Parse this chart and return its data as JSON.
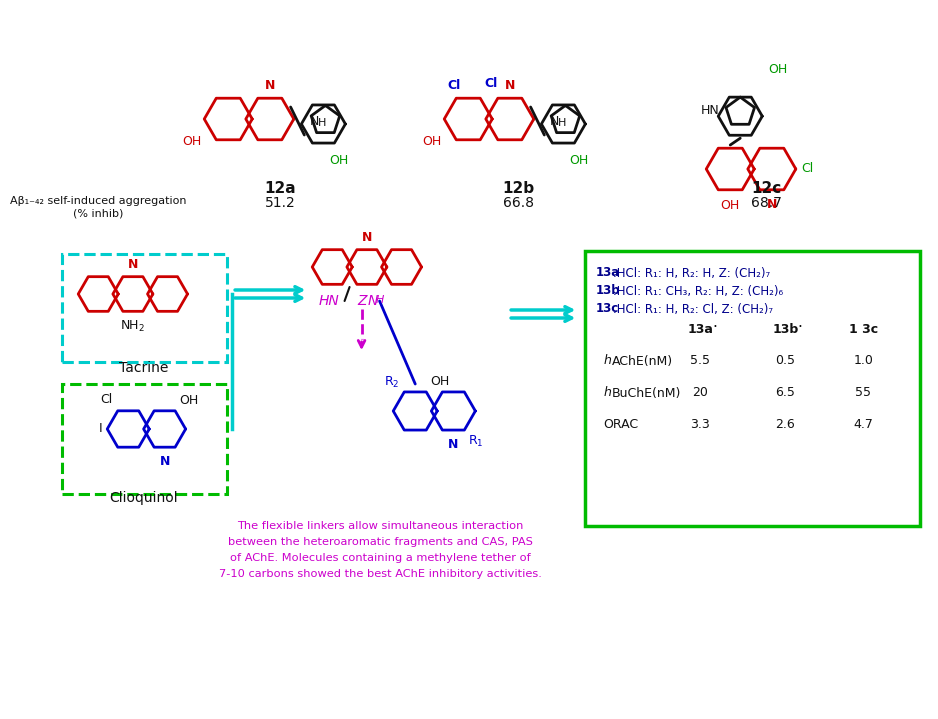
{
  "bg_color": "#ffffff",
  "fig_width": 8.78,
  "fig_height": 6.99,
  "red": "#cc0000",
  "green": "#009900",
  "blue": "#0000cc",
  "dark_blue": "#00008B",
  "cyan_box": "#00cccc",
  "green_box": "#00bb00",
  "magenta": "#cc00cc",
  "black": "#111111",
  "mol12a_label": "12a",
  "mol12b_label": "12b",
  "mol12c_label": "12c",
  "val12a": "51.2",
  "val12b": "66.8",
  "val12c": "68.7",
  "ab_text1": "Aβ₁₋₄₂ self-induced aggregation",
  "ab_text2": "(% inhib)",
  "tacrine_label": "Tacrine",
  "clioquinol_label": "Clioquinol",
  "box13_l1b": "13a",
  "box13_l1r": ".HCl: R₁: H, R₂: H, Z: (CH₂)₇",
  "box13_l2b": "13b",
  "box13_l2r": ".HCl: R₁: CH₃, R₂: H, Z: (CH₂)₆",
  "box13_l3b": "13c",
  "box13_l3r": ".HCl: R₁: H, R₂: Cl, Z: (CH₂)₇",
  "tbl_h1": "13a",
  "tbl_h2": "13b",
  "tbl_h3": "1 3c",
  "tbl_r1": [
    "hAChE(nM)",
    "5.5",
    "0.5",
    "1.0"
  ],
  "tbl_r2": [
    "hBuChE(nM)",
    "20",
    "6.5",
    "55"
  ],
  "tbl_r3": [
    "ORAC",
    "3.3",
    "2.6",
    "4.7"
  ],
  "mag_text": "The flexible linkers allow simultaneous interaction\nbetween the heteroaromatic fragments and CAS, PAS\nof AChE. Molecules containing a methylene tether of\n7-10 carbons showed the best AChE inhibitory activities."
}
